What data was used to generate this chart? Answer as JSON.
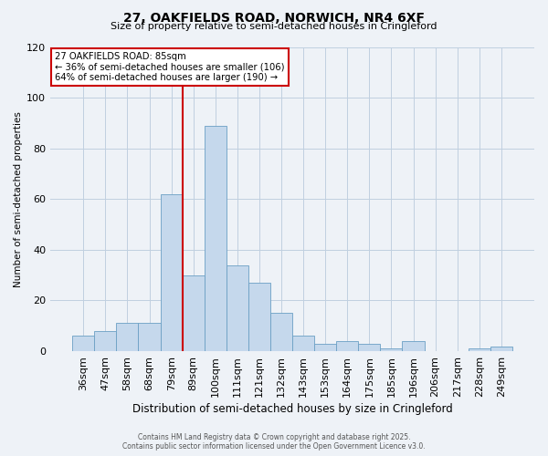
{
  "title": "27, OAKFIELDS ROAD, NORWICH, NR4 6XF",
  "subtitle": "Size of property relative to semi-detached houses in Cringleford",
  "xlabel": "Distribution of semi-detached houses by size in Cringleford",
  "ylabel": "Number of semi-detached properties",
  "categories": [
    "36sqm",
    "47sqm",
    "58sqm",
    "68sqm",
    "79sqm",
    "89sqm",
    "100sqm",
    "111sqm",
    "121sqm",
    "132sqm",
    "143sqm",
    "153sqm",
    "164sqm",
    "175sqm",
    "185sqm",
    "196sqm",
    "206sqm",
    "217sqm",
    "228sqm",
    "249sqm"
  ],
  "values": [
    6,
    8,
    11,
    11,
    62,
    30,
    89,
    34,
    27,
    15,
    6,
    3,
    4,
    3,
    1,
    4,
    0,
    0,
    1,
    2
  ],
  "bar_color": "#c5d8ec",
  "bar_edge_color": "#6b9fc4",
  "vline_color": "#cc0000",
  "vline_x": 5,
  "property_label": "27 OAKFIELDS ROAD: 85sqm",
  "smaller_text": "← 36% of semi-detached houses are smaller (106)",
  "larger_text": "64% of semi-detached houses are larger (190) →",
  "annotation_box_color": "#cc0000",
  "footer_line1": "Contains HM Land Registry data © Crown copyright and database right 2025.",
  "footer_line2": "Contains public sector information licensed under the Open Government Licence v3.0.",
  "ylim": [
    0,
    120
  ],
  "yticks": [
    0,
    20,
    40,
    60,
    80,
    100,
    120
  ],
  "bg_color": "#eef2f7",
  "grid_color": "#c0cfe0"
}
